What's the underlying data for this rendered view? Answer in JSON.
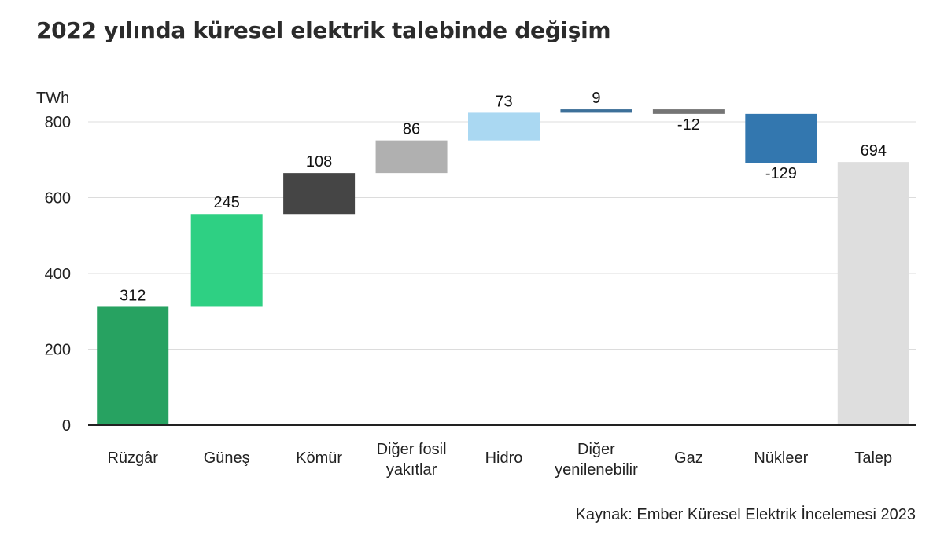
{
  "chart_data": {
    "type": "waterfall",
    "title": "2022 yılında küresel elektrik talebinde değişim",
    "ylabel": "TWh",
    "ylim": [
      0,
      800
    ],
    "yticks": [
      0,
      200,
      400,
      600,
      800
    ],
    "grid": true,
    "categories": [
      [
        "Rüzgâr"
      ],
      [
        "Güneş"
      ],
      [
        "Kömür"
      ],
      [
        "Diğer fosil",
        "yakıtlar"
      ],
      [
        "Hidro"
      ],
      [
        "Diğer",
        "yenilenebilir"
      ],
      [
        "Gaz"
      ],
      [
        "Nükleer"
      ],
      [
        "Talep"
      ]
    ],
    "values": [
      312,
      245,
      108,
      86,
      73,
      9,
      -12,
      -129,
      694
    ],
    "value_labels": [
      "312",
      "245",
      "108",
      "86",
      "73",
      "9",
      "-12",
      "-129",
      "694"
    ],
    "total_index": 8,
    "colors": [
      "#27a261",
      "#2ed083",
      "#454545",
      "#b0b0b0",
      "#aad8f2",
      "#3d7099",
      "#757575",
      "#3377af",
      "#dedede"
    ]
  },
  "source": "Kaynak: Ember Küresel Elektrik İncelemesi 2023"
}
